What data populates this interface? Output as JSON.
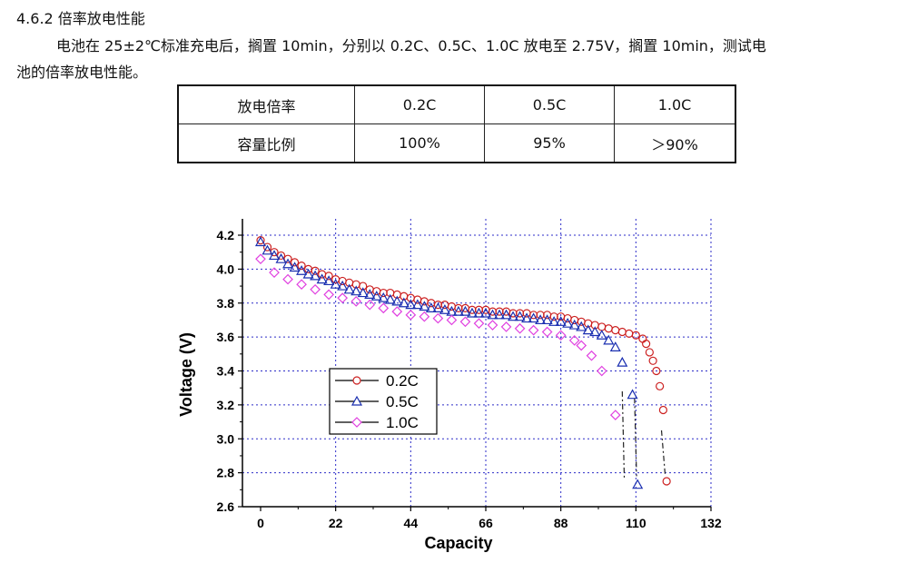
{
  "section": {
    "heading": "4.6.2 倍率放电性能",
    "para_line1": "电池在 25±2℃标准充电后，搁置 10min，分别以 0.2C、0.5C、1.0C 放电至 2.75V，搁置 10min，测试电",
    "para_line2": "池的倍率放电性能。"
  },
  "table": {
    "rows": [
      [
        "放电倍率",
        "0.2C",
        "0.5C",
        "1.0C"
      ],
      [
        "容量比例",
        "100%",
        "95%",
        "＞90%"
      ]
    ]
  },
  "chart_data": {
    "type": "scatter",
    "xlabel": "Capacity",
    "ylabel": "Voltage (V)",
    "xlim": [
      0,
      132
    ],
    "ylim": [
      2.6,
      4.2
    ],
    "xticks": [
      0,
      22,
      44,
      66,
      88,
      110,
      132
    ],
    "yticks": [
      2.6,
      2.8,
      3.0,
      3.2,
      3.4,
      3.6,
      3.8,
      4.0,
      4.2
    ],
    "grid": true,
    "legend_position": "lower-left",
    "series": [
      {
        "name": "0.2C",
        "marker": "circle",
        "color": "#cc2020",
        "points": [
          [
            0,
            4.17
          ],
          [
            2,
            4.13
          ],
          [
            4,
            4.1
          ],
          [
            6,
            4.08
          ],
          [
            8,
            4.06
          ],
          [
            10,
            4.04
          ],
          [
            12,
            4.02
          ],
          [
            14,
            4.0
          ],
          [
            16,
            3.99
          ],
          [
            18,
            3.97
          ],
          [
            20,
            3.96
          ],
          [
            22,
            3.94
          ],
          [
            24,
            3.93
          ],
          [
            26,
            3.92
          ],
          [
            28,
            3.91
          ],
          [
            30,
            3.9
          ],
          [
            32,
            3.88
          ],
          [
            34,
            3.87
          ],
          [
            36,
            3.86
          ],
          [
            38,
            3.86
          ],
          [
            40,
            3.85
          ],
          [
            42,
            3.84
          ],
          [
            44,
            3.83
          ],
          [
            46,
            3.82
          ],
          [
            48,
            3.81
          ],
          [
            50,
            3.8
          ],
          [
            52,
            3.79
          ],
          [
            54,
            3.79
          ],
          [
            56,
            3.78
          ],
          [
            58,
            3.77
          ],
          [
            60,
            3.77
          ],
          [
            62,
            3.76
          ],
          [
            64,
            3.76
          ],
          [
            66,
            3.76
          ],
          [
            68,
            3.75
          ],
          [
            70,
            3.75
          ],
          [
            72,
            3.75
          ],
          [
            74,
            3.74
          ],
          [
            76,
            3.74
          ],
          [
            78,
            3.74
          ],
          [
            80,
            3.73
          ],
          [
            82,
            3.73
          ],
          [
            84,
            3.73
          ],
          [
            86,
            3.72
          ],
          [
            88,
            3.72
          ],
          [
            90,
            3.71
          ],
          [
            92,
            3.7
          ],
          [
            94,
            3.69
          ],
          [
            96,
            3.68
          ],
          [
            98,
            3.67
          ],
          [
            100,
            3.66
          ],
          [
            102,
            3.65
          ],
          [
            104,
            3.64
          ],
          [
            106,
            3.63
          ],
          [
            108,
            3.62
          ],
          [
            110,
            3.61
          ],
          [
            112,
            3.59
          ],
          [
            113,
            3.56
          ],
          [
            114,
            3.51
          ],
          [
            115,
            3.46
          ],
          [
            116,
            3.4
          ],
          [
            117,
            3.31
          ],
          [
            118,
            3.17
          ],
          [
            119,
            2.75
          ]
        ]
      },
      {
        "name": "0.5C",
        "marker": "triangle",
        "color": "#1a2fb0",
        "points": [
          [
            0,
            4.16
          ],
          [
            2,
            4.11
          ],
          [
            4,
            4.08
          ],
          [
            6,
            4.06
          ],
          [
            8,
            4.03
          ],
          [
            10,
            4.01
          ],
          [
            12,
            3.99
          ],
          [
            14,
            3.97
          ],
          [
            16,
            3.96
          ],
          [
            18,
            3.94
          ],
          [
            20,
            3.93
          ],
          [
            22,
            3.91
          ],
          [
            24,
            3.9
          ],
          [
            26,
            3.88
          ],
          [
            28,
            3.87
          ],
          [
            30,
            3.86
          ],
          [
            32,
            3.85
          ],
          [
            34,
            3.84
          ],
          [
            36,
            3.83
          ],
          [
            38,
            3.82
          ],
          [
            40,
            3.81
          ],
          [
            42,
            3.8
          ],
          [
            44,
            3.79
          ],
          [
            46,
            3.79
          ],
          [
            48,
            3.78
          ],
          [
            50,
            3.77
          ],
          [
            52,
            3.77
          ],
          [
            54,
            3.76
          ],
          [
            56,
            3.75
          ],
          [
            58,
            3.75
          ],
          [
            60,
            3.75
          ],
          [
            62,
            3.74
          ],
          [
            64,
            3.74
          ],
          [
            66,
            3.74
          ],
          [
            68,
            3.73
          ],
          [
            70,
            3.73
          ],
          [
            72,
            3.73
          ],
          [
            74,
            3.72
          ],
          [
            76,
            3.72
          ],
          [
            78,
            3.71
          ],
          [
            80,
            3.71
          ],
          [
            82,
            3.7
          ],
          [
            84,
            3.7
          ],
          [
            86,
            3.69
          ],
          [
            88,
            3.69
          ],
          [
            90,
            3.68
          ],
          [
            92,
            3.67
          ],
          [
            94,
            3.66
          ],
          [
            96,
            3.64
          ],
          [
            98,
            3.63
          ],
          [
            100,
            3.61
          ],
          [
            102,
            3.58
          ],
          [
            104,
            3.54
          ],
          [
            106,
            3.45
          ],
          [
            109,
            3.26
          ],
          [
            110.5,
            2.73
          ]
        ]
      },
      {
        "name": "1.0C",
        "marker": "diamond",
        "color": "#e040e0",
        "points": [
          [
            0,
            4.06
          ],
          [
            4,
            3.98
          ],
          [
            8,
            3.94
          ],
          [
            12,
            3.91
          ],
          [
            16,
            3.88
          ],
          [
            20,
            3.85
          ],
          [
            24,
            3.83
          ],
          [
            28,
            3.81
          ],
          [
            32,
            3.79
          ],
          [
            36,
            3.77
          ],
          [
            40,
            3.75
          ],
          [
            44,
            3.73
          ],
          [
            48,
            3.72
          ],
          [
            52,
            3.71
          ],
          [
            56,
            3.7
          ],
          [
            60,
            3.69
          ],
          [
            64,
            3.68
          ],
          [
            68,
            3.67
          ],
          [
            72,
            3.66
          ],
          [
            76,
            3.65
          ],
          [
            80,
            3.64
          ],
          [
            84,
            3.63
          ],
          [
            88,
            3.61
          ],
          [
            92,
            3.58
          ],
          [
            94,
            3.55
          ],
          [
            97,
            3.49
          ],
          [
            100,
            3.4
          ],
          [
            104,
            3.14
          ]
        ]
      }
    ]
  }
}
